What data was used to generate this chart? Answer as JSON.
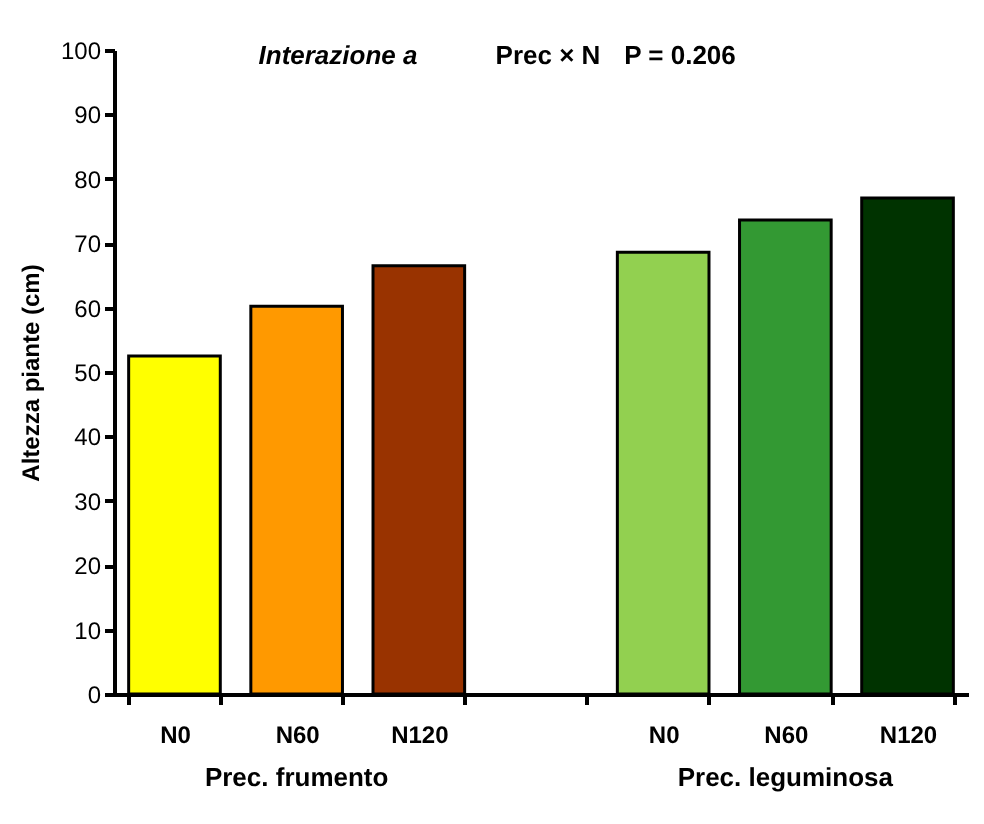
{
  "chart_data": {
    "type": "bar",
    "categories": [
      "N0",
      "N60",
      "N120",
      null,
      "N0",
      "N60",
      "N120"
    ],
    "values": [
      52.5,
      60.2,
      66.5,
      null,
      68.6,
      73.6,
      77.0
    ],
    "colors": [
      "#ffff00",
      "#ff9900",
      "#993300",
      "#ffffff",
      "#92d050",
      "#339933",
      "#003300"
    ],
    "ylabel": "Altezza piante (cm)",
    "ylim": [
      0,
      100
    ],
    "yticks": [
      0,
      10,
      20,
      30,
      40,
      50,
      60,
      70,
      80,
      90,
      100
    ],
    "grid": false,
    "legend": false,
    "annotations": [
      "Interazione a",
      "Prec × N",
      "P = 0.206",
      "Prec. frumento",
      "Prec. leguminosa"
    ]
  }
}
